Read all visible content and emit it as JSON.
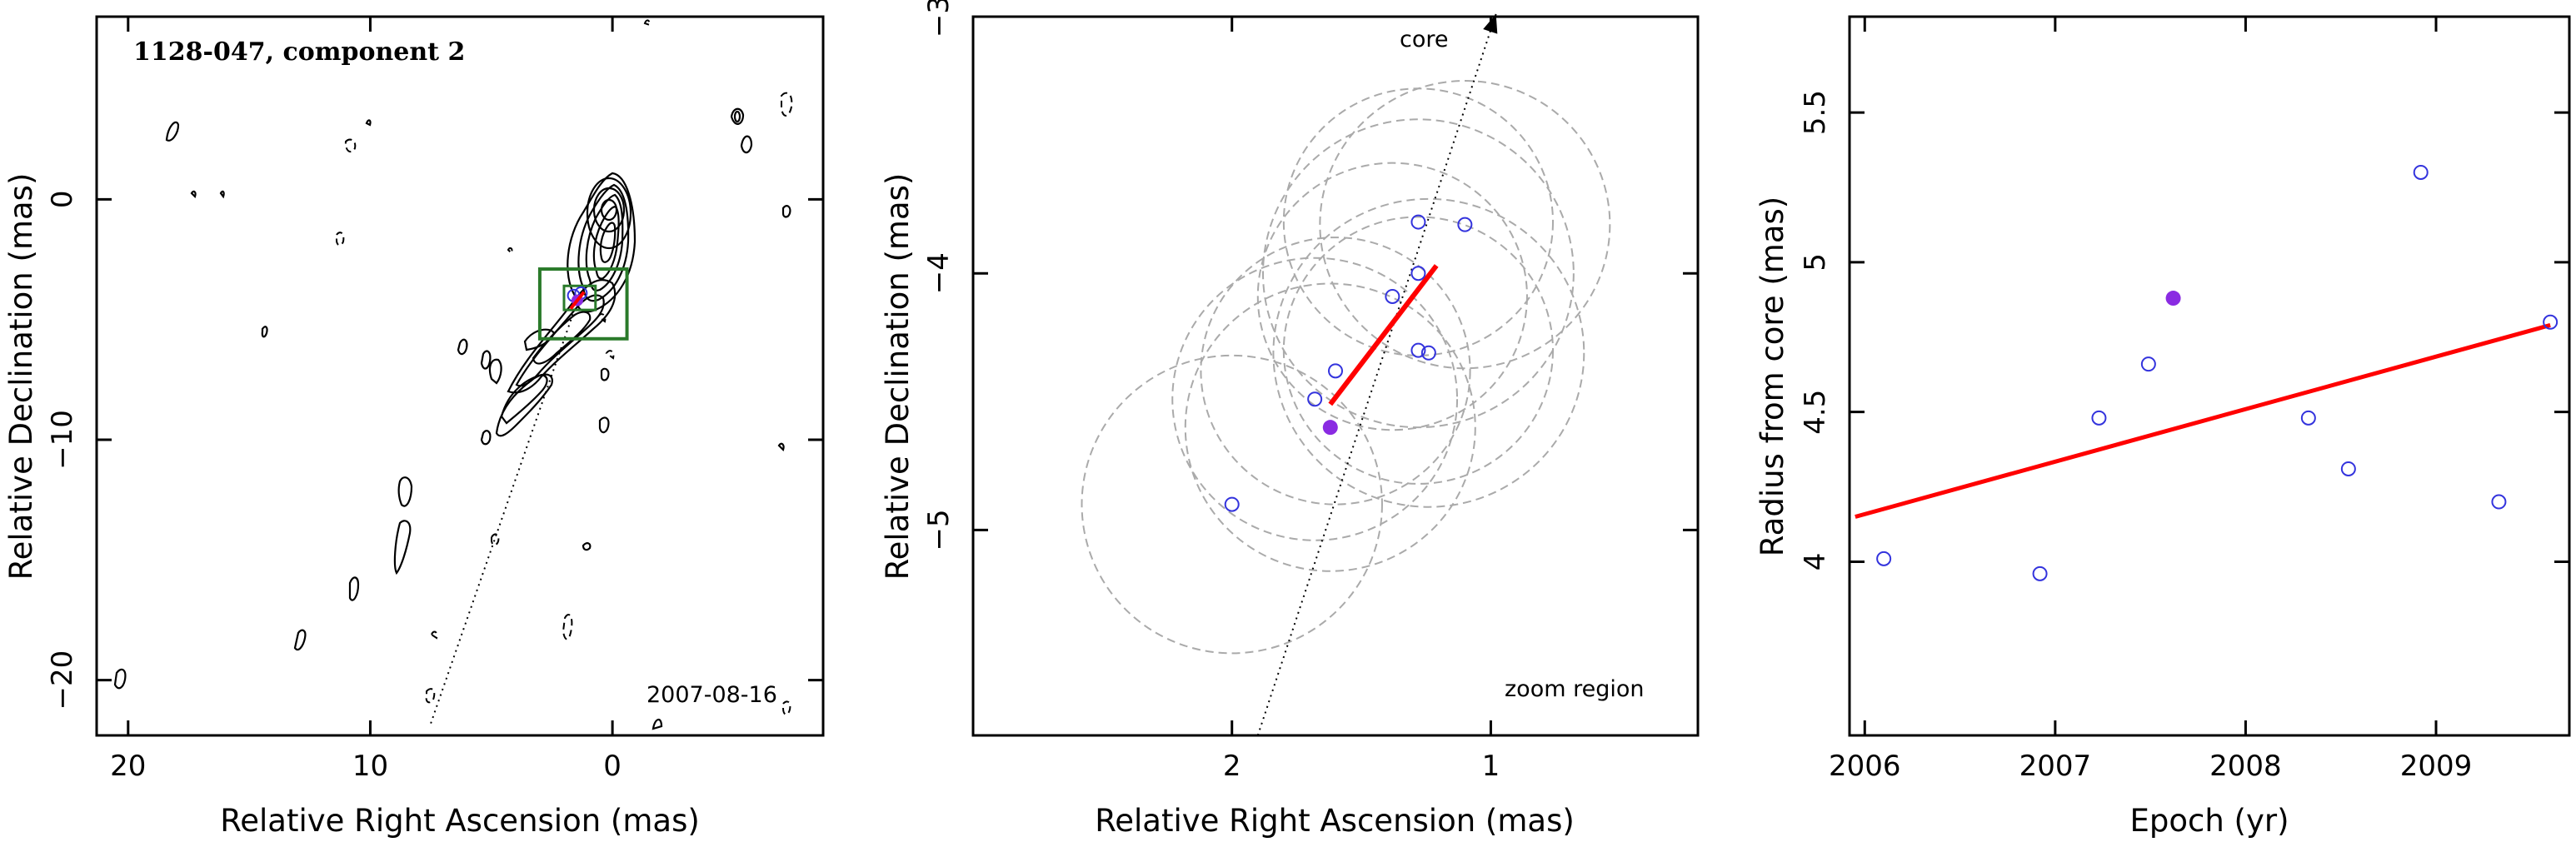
{
  "chart_data": [
    {
      "type": "contour",
      "title": "1128-047, component 2",
      "xlabel": "Relative Right Ascension (mas)",
      "ylabel": "Relative Declination (mas)",
      "date_label": "2007-08-16",
      "xlim": [
        21.3,
        -8.7
      ],
      "ylim": [
        -22.3,
        7.6
      ],
      "xticks": [
        20,
        10,
        0
      ],
      "yticks": [
        0,
        -10,
        -20
      ],
      "xtick_labels": [
        "20",
        "10",
        "0"
      ],
      "ytick_labels": [
        "0",
        "−10",
        "−20"
      ],
      "jet_axis": {
        "from": [
          7.5,
          -21.8
        ],
        "to": [
          1.4,
          -4.1
        ]
      },
      "zoom_box": {
        "x": [
          -0.6,
          3.0
        ],
        "y": [
          -5.8,
          -2.9
        ]
      },
      "inner_box": {
        "x": [
          0.7,
          2.0
        ],
        "y": [
          -4.6,
          -3.6
        ]
      },
      "component_marker": {
        "x": 1.45,
        "y": -4.2
      },
      "component_circles": [
        {
          "x": 1.6,
          "y": -4.0
        },
        {
          "x": 1.3,
          "y": -3.9
        }
      ],
      "core": {
        "x": 0.0,
        "y": 0.0
      }
    },
    {
      "type": "scatter",
      "xlabel": "Relative Right Ascension (mas)",
      "ylabel": "Relative Declination (mas)",
      "xlim": [
        3.0,
        0.2
      ],
      "ylim": [
        -5.8,
        -3.0
      ],
      "xticks": [
        2,
        1
      ],
      "yticks": [
        -3,
        -4,
        -5
      ],
      "xtick_labels": [
        "2",
        "1"
      ],
      "ytick_labels": [
        "−3",
        "−4",
        "−5"
      ],
      "annotations": {
        "core_label": "core",
        "zoom_label": "zoom region"
      },
      "jet_axis": {
        "from": [
          1.9,
          -5.8
        ],
        "to": [
          0.98,
          -2.99
        ]
      },
      "fit_line": {
        "from": [
          1.62,
          -4.51
        ],
        "to": [
          1.21,
          -3.97
        ]
      },
      "points": [
        {
          "x": 2.0,
          "y": -4.9,
          "r": 0.58
        },
        {
          "x": 1.68,
          "y": -4.49,
          "r": 0.55
        },
        {
          "x": 1.6,
          "y": -4.38,
          "r": 0.52
        },
        {
          "x": 1.38,
          "y": -4.09,
          "r": 0.52
        },
        {
          "x": 1.28,
          "y": -4.0,
          "r": 0.6
        },
        {
          "x": 1.28,
          "y": -4.3,
          "r": 0.52
        },
        {
          "x": 1.24,
          "y": -4.31,
          "r": 0.6
        },
        {
          "x": 1.28,
          "y": -3.8,
          "r": 0.52
        },
        {
          "x": 1.1,
          "y": -3.81,
          "r": 0.56
        }
      ],
      "highlight_point": {
        "x": 1.62,
        "y": -4.6,
        "r": 0.56
      }
    },
    {
      "type": "scatter",
      "xlabel": "Epoch (yr)",
      "ylabel": "Radius from core (mas)",
      "xlim": [
        2005.92,
        2009.7
      ],
      "ylim": [
        3.42,
        5.82
      ],
      "xticks": [
        2006,
        2007,
        2008,
        2009
      ],
      "yticks": [
        4,
        4.5,
        5,
        5.5
      ],
      "xtick_labels": [
        "2006",
        "2007",
        "2008",
        "2009"
      ],
      "ytick_labels": [
        "4",
        "4.5",
        "5",
        "5.5"
      ],
      "fit_line": {
        "from": [
          2005.95,
          4.15
        ],
        "to": [
          2009.6,
          4.79
        ]
      },
      "points": [
        {
          "x": 2006.1,
          "y": 4.01
        },
        {
          "x": 2006.92,
          "y": 3.96
        },
        {
          "x": 2007.23,
          "y": 4.48
        },
        {
          "x": 2007.49,
          "y": 4.66
        },
        {
          "x": 2008.33,
          "y": 4.48
        },
        {
          "x": 2008.54,
          "y": 4.31
        },
        {
          "x": 2008.92,
          "y": 5.3
        },
        {
          "x": 2009.33,
          "y": 4.2
        },
        {
          "x": 2009.6,
          "y": 4.8
        }
      ],
      "highlight_point": {
        "x": 2007.62,
        "y": 4.88
      }
    }
  ],
  "colors": {
    "contour": "#000000",
    "box": "#2a7a2a",
    "fit": "#ff0000",
    "open_marker": "#3333dd",
    "filled_marker": "#8a2be2",
    "error_circle": "#aaaaaa",
    "axis": "#000000"
  }
}
